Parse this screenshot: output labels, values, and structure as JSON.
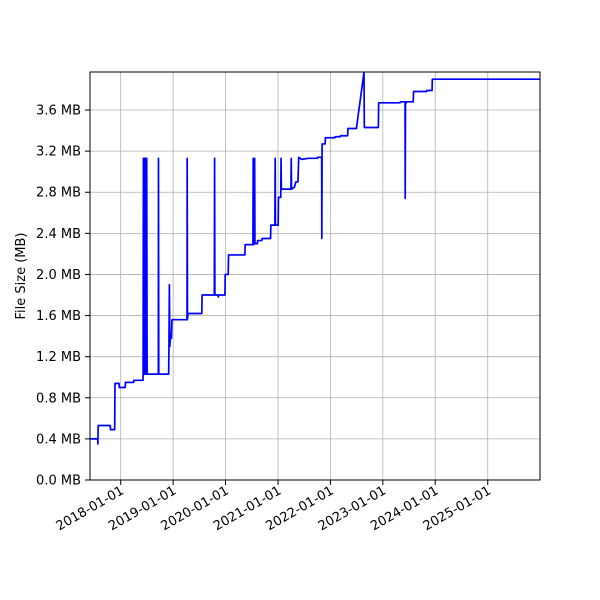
{
  "chart_data": {
    "type": "line",
    "title": "",
    "xlabel": "",
    "ylabel": "File Size (MB)",
    "x_range": [
      "2017-06-01",
      "2025-12-31"
    ],
    "ylim": [
      0,
      3.97
    ],
    "grid": true,
    "y_ticks": [
      0,
      0.4,
      0.8,
      1.2,
      1.6,
      2.0,
      2.4,
      2.8,
      3.2,
      3.6
    ],
    "y_tick_labels": [
      "0.0 MB",
      "0.4 MB",
      "0.8 MB",
      "1.2 MB",
      "1.6 MB",
      "2.0 MB",
      "2.4 MB",
      "2.8 MB",
      "3.2 MB",
      "3.6 MB"
    ],
    "x_ticks": [
      "2018-01-01",
      "2019-01-01",
      "2020-01-01",
      "2021-01-01",
      "2022-01-01",
      "2023-01-01",
      "2024-01-01",
      "2025-01-01"
    ],
    "x_tick_labels": [
      "2018-01-01",
      "2019-01-01",
      "2020-01-01",
      "2021-01-01",
      "2022-01-01",
      "2023-01-01",
      "2024-01-01",
      "2025-01-01"
    ],
    "series": [
      {
        "color": "#0000ff",
        "points": [
          [
            "2017-06-01",
            0.4
          ],
          [
            "2017-07-25",
            0.4
          ],
          [
            "2017-07-26",
            0.35
          ],
          [
            "2017-07-28",
            0.53
          ],
          [
            "2017-10-20",
            0.53
          ],
          [
            "2017-10-22",
            0.49
          ],
          [
            "2017-11-20",
            0.49
          ],
          [
            "2017-11-22",
            0.94
          ],
          [
            "2017-12-20",
            0.94
          ],
          [
            "2017-12-22",
            0.9
          ],
          [
            "2018-02-01",
            0.9
          ],
          [
            "2018-02-03",
            0.95
          ],
          [
            "2018-04-01",
            0.95
          ],
          [
            "2018-04-03",
            0.97
          ],
          [
            "2018-06-05",
            0.97
          ],
          [
            "2018-06-06",
            1.03
          ],
          [
            "2018-06-08",
            3.13
          ],
          [
            "2018-06-10",
            1.03
          ],
          [
            "2018-06-12",
            3.13
          ],
          [
            "2018-06-15",
            1.03
          ],
          [
            "2018-06-17",
            3.13
          ],
          [
            "2018-06-19",
            1.03
          ],
          [
            "2018-06-22",
            3.13
          ],
          [
            "2018-06-25",
            3.13
          ],
          [
            "2018-06-27",
            1.03
          ],
          [
            "2018-07-01",
            3.13
          ],
          [
            "2018-07-04",
            1.03
          ],
          [
            "2018-09-20",
            1.03
          ],
          [
            "2018-09-21",
            3.13
          ],
          [
            "2018-09-23",
            1.03
          ],
          [
            "2018-12-01",
            1.03
          ],
          [
            "2018-12-03",
            1.3
          ],
          [
            "2018-12-06",
            1.9
          ],
          [
            "2018-12-09",
            1.3
          ],
          [
            "2018-12-14",
            1.4
          ],
          [
            "2018-12-20",
            1.38
          ],
          [
            "2018-12-24",
            1.56
          ],
          [
            "2019-04-08",
            1.56
          ],
          [
            "2019-04-09",
            3.13
          ],
          [
            "2019-04-11",
            1.56
          ],
          [
            "2019-04-14",
            1.62
          ],
          [
            "2019-07-20",
            1.62
          ],
          [
            "2019-07-22",
            1.8
          ],
          [
            "2019-10-15",
            1.8
          ],
          [
            "2019-10-17",
            3.13
          ],
          [
            "2019-10-19",
            1.8
          ],
          [
            "2019-11-10",
            1.8
          ],
          [
            "2019-11-12",
            1.78
          ],
          [
            "2019-11-14",
            1.8
          ],
          [
            "2019-12-28",
            1.8
          ],
          [
            "2019-12-30",
            2.0
          ],
          [
            "2020-01-20",
            2.0
          ],
          [
            "2020-01-22",
            2.19
          ],
          [
            "2020-05-15",
            2.19
          ],
          [
            "2020-05-17",
            2.29
          ],
          [
            "2020-07-10",
            2.29
          ],
          [
            "2020-07-12",
            3.13
          ],
          [
            "2020-07-14",
            2.29
          ],
          [
            "2020-07-20",
            2.3
          ],
          [
            "2020-07-22",
            3.13
          ],
          [
            "2020-07-24",
            2.3
          ],
          [
            "2020-08-10",
            2.3
          ],
          [
            "2020-08-12",
            2.33
          ],
          [
            "2020-09-10",
            2.33
          ],
          [
            "2020-09-12",
            2.35
          ],
          [
            "2020-11-10",
            2.35
          ],
          [
            "2020-11-12",
            2.48
          ],
          [
            "2020-12-10",
            2.48
          ],
          [
            "2020-12-12",
            3.13
          ],
          [
            "2020-12-14",
            2.48
          ],
          [
            "2021-01-02",
            2.48
          ],
          [
            "2021-01-04",
            2.75
          ],
          [
            "2021-01-20",
            2.75
          ],
          [
            "2021-01-22",
            3.13
          ],
          [
            "2021-01-24",
            2.83
          ],
          [
            "2021-04-01",
            2.83
          ],
          [
            "2021-04-03",
            3.13
          ],
          [
            "2021-04-05",
            2.83
          ],
          [
            "2021-04-25",
            2.85
          ],
          [
            "2021-05-05",
            2.9
          ],
          [
            "2021-05-20",
            2.9
          ],
          [
            "2021-05-25",
            3.14
          ],
          [
            "2021-06-15",
            3.12
          ],
          [
            "2021-08-01",
            3.13
          ],
          [
            "2021-10-01",
            3.13
          ],
          [
            "2021-10-03",
            3.14
          ],
          [
            "2021-11-01",
            3.14
          ],
          [
            "2021-11-02",
            2.35
          ],
          [
            "2021-11-04",
            3.27
          ],
          [
            "2021-11-25",
            3.27
          ],
          [
            "2021-11-27",
            3.33
          ],
          [
            "2022-02-01",
            3.33
          ],
          [
            "2022-02-03",
            3.34
          ],
          [
            "2022-03-10",
            3.34
          ],
          [
            "2022-03-12",
            3.35
          ],
          [
            "2022-05-01",
            3.35
          ],
          [
            "2022-05-03",
            3.42
          ],
          [
            "2022-07-01",
            3.42
          ],
          [
            "2022-08-23",
            3.97
          ],
          [
            "2022-08-25",
            3.43
          ],
          [
            "2022-12-01",
            3.43
          ],
          [
            "2022-12-03",
            3.67
          ],
          [
            "2023-05-01",
            3.67
          ],
          [
            "2023-05-03",
            3.68
          ],
          [
            "2023-06-05",
            3.68
          ],
          [
            "2023-06-06",
            2.74
          ],
          [
            "2023-06-08",
            3.68
          ],
          [
            "2023-06-10",
            3.66
          ],
          [
            "2023-06-12",
            3.68
          ],
          [
            "2023-08-01",
            3.68
          ],
          [
            "2023-08-03",
            3.78
          ],
          [
            "2023-11-01",
            3.78
          ],
          [
            "2023-11-03",
            3.79
          ],
          [
            "2023-12-10",
            3.79
          ],
          [
            "2023-12-12",
            3.9
          ],
          [
            "2025-12-31",
            3.9
          ]
        ]
      }
    ]
  }
}
